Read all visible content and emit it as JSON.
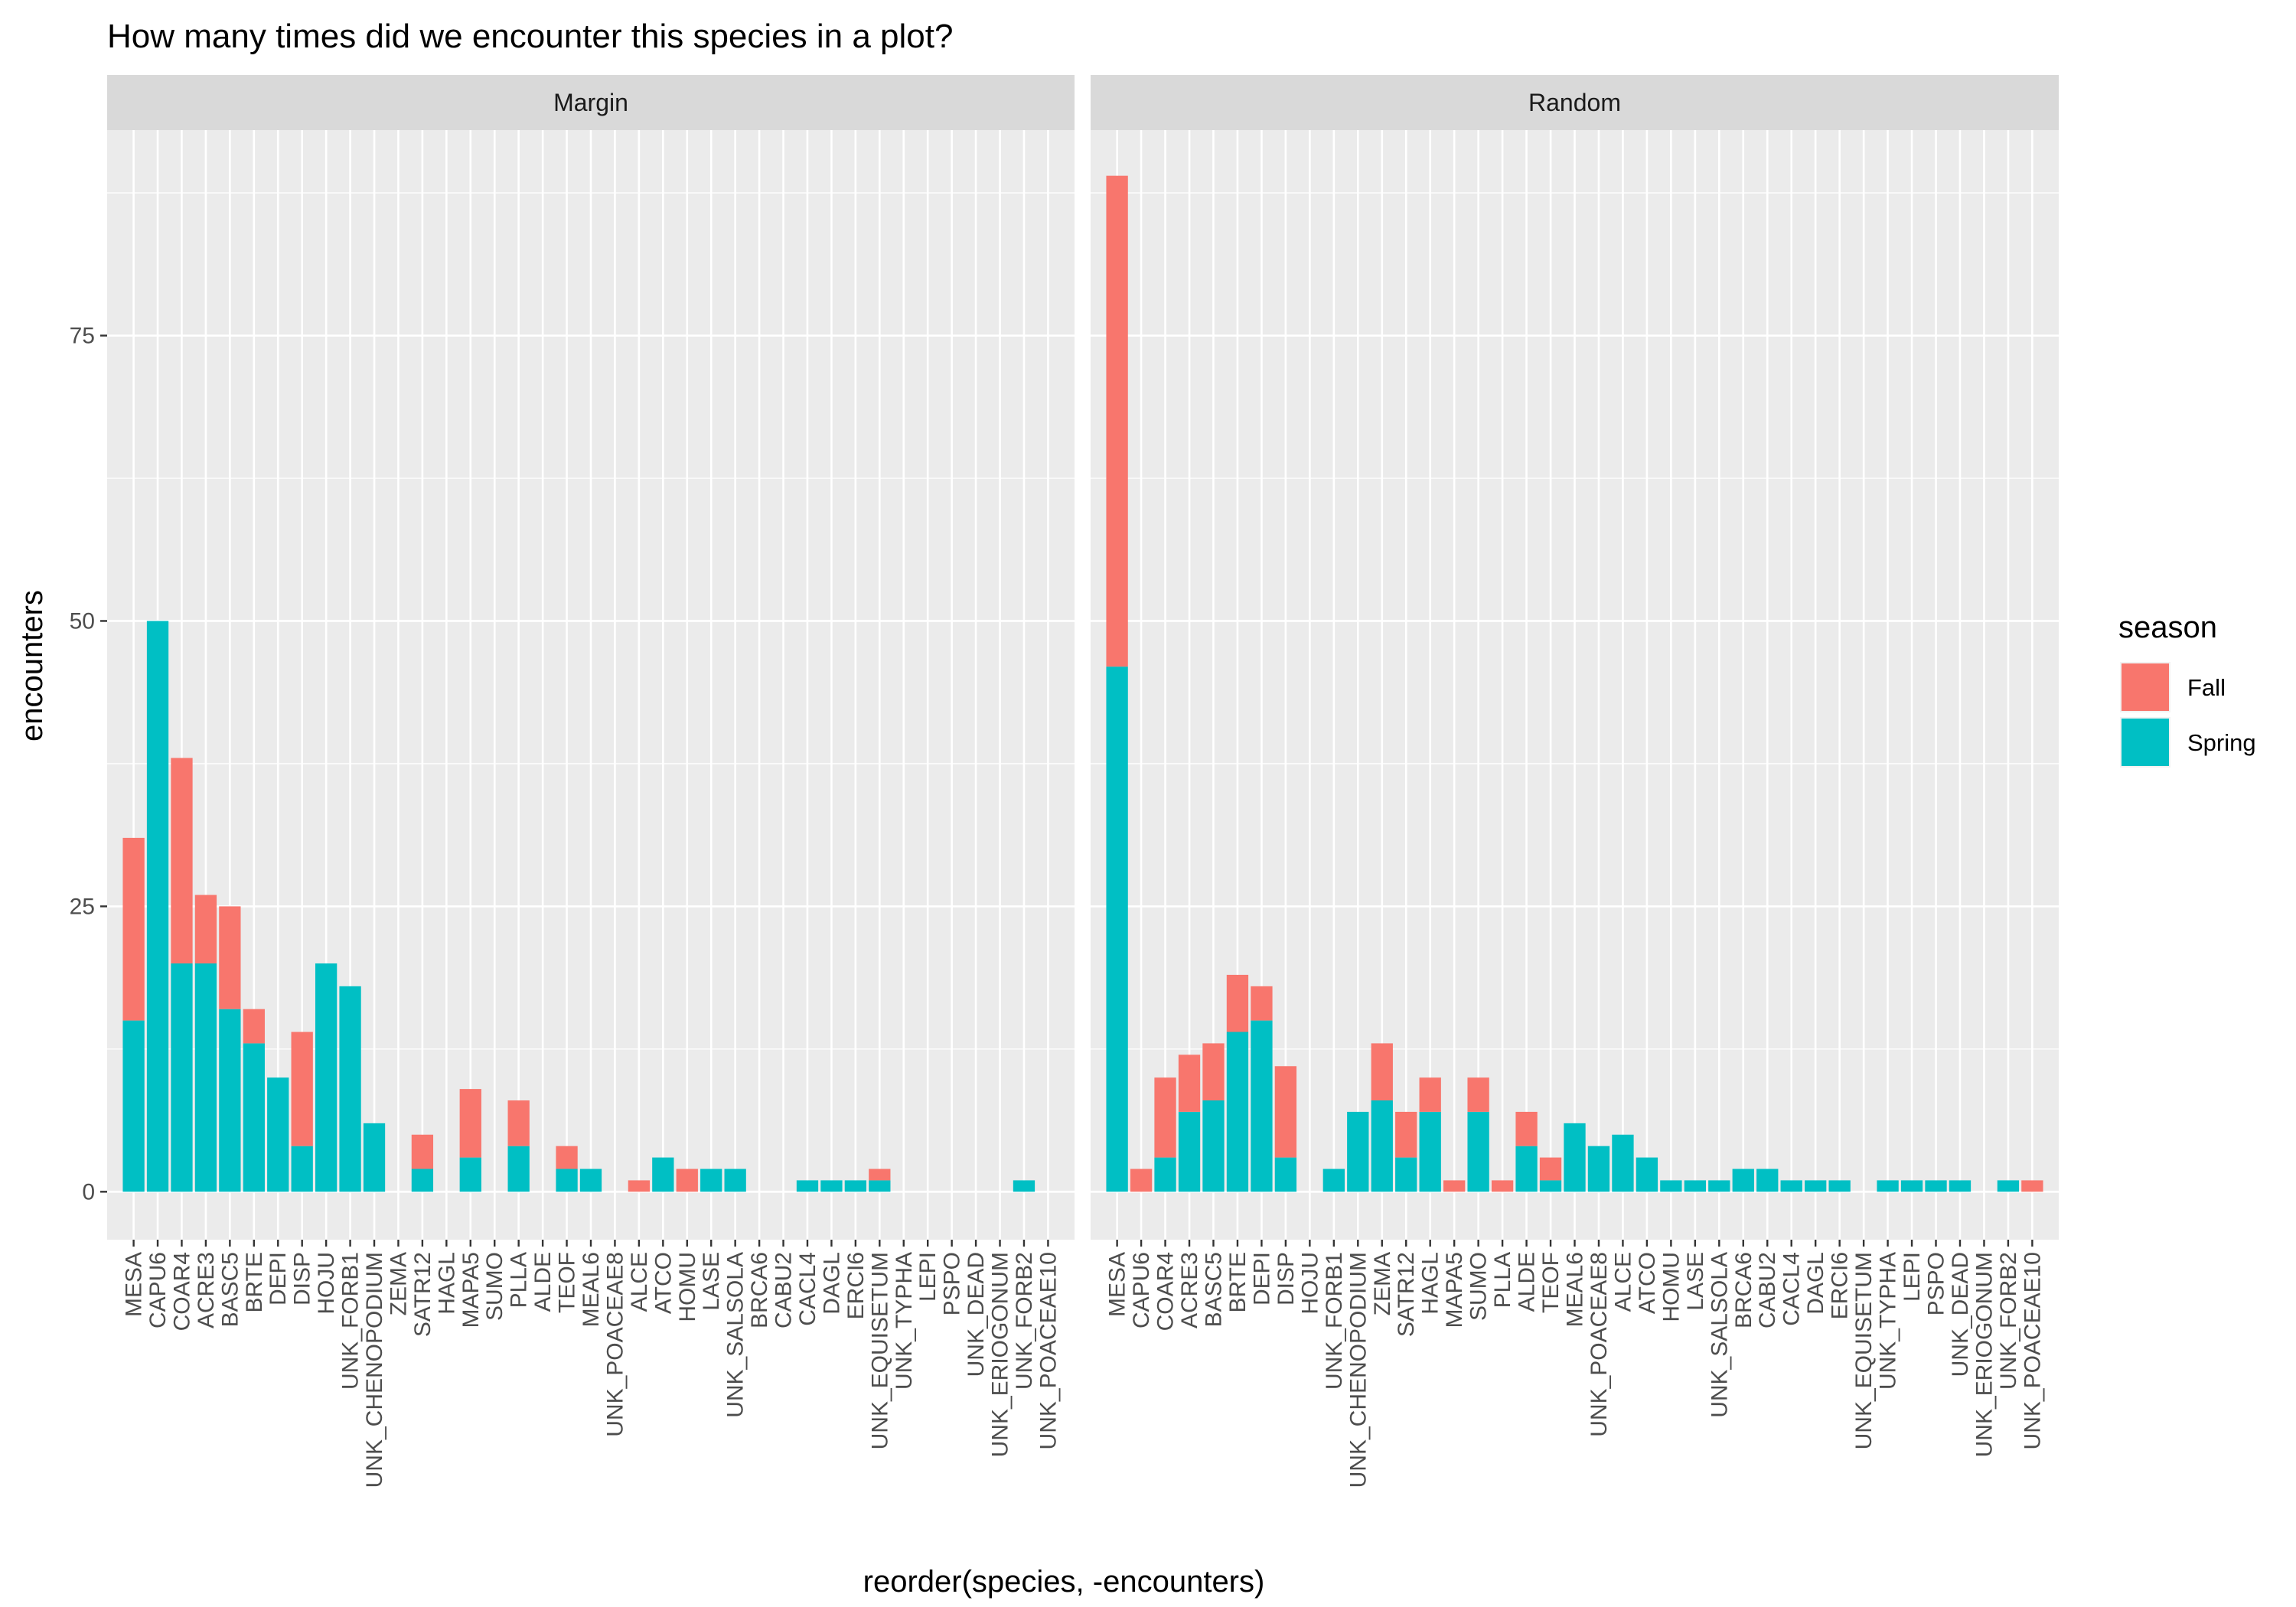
{
  "chart_data": {
    "type": "bar",
    "stacked": true,
    "title": "How many times did we encounter this species in a plot?",
    "xlabel": "reorder(species, -encounters)",
    "ylabel": "encounters",
    "ylim": [
      -4.2,
      93
    ],
    "yticks": [
      0,
      25,
      50,
      75
    ],
    "grid": true,
    "legend": {
      "title": "season",
      "position": "right",
      "entries": [
        {
          "name": "Fall",
          "color": "#F8766D"
        },
        {
          "name": "Spring",
          "color": "#00BFC4"
        }
      ]
    },
    "categories": [
      "MESA",
      "CAPU6",
      "COAR4",
      "ACRE3",
      "BASC5",
      "BRTE",
      "DEPI",
      "DISP",
      "HOJU",
      "UNK_FORB1",
      "UNK_CHENOPODIUM",
      "ZEMA",
      "SATR12",
      "HAGL",
      "MAPA5",
      "SUMO",
      "PLLA",
      "ALDE",
      "TEOF",
      "MEAL6",
      "UNK_POACEAE8",
      "ALCE",
      "ATCO",
      "HOMU",
      "LASE",
      "UNK_SALSOLA",
      "BRCA6",
      "CABU2",
      "CACL4",
      "DAGL",
      "ERCI6",
      "UNK_EQUISETUM",
      "UNK_TYPHA",
      "LEPI",
      "PSPO",
      "UNK_DEAD",
      "UNK_ERIOGONUM",
      "UNK_FORB2",
      "UNK_POACEAE10"
    ],
    "panels": [
      {
        "name": "Margin",
        "series": [
          {
            "name": "Spring",
            "values": [
              15,
              50,
              20,
              20,
              16,
              13,
              10,
              4,
              20,
              18,
              6,
              0,
              2,
              0,
              3,
              0,
              4,
              0,
              2,
              2,
              0,
              0,
              3,
              0,
              2,
              2,
              0,
              0,
              1,
              1,
              1,
              1,
              0,
              0,
              0,
              0,
              0,
              1,
              0
            ]
          },
          {
            "name": "Fall",
            "values": [
              16,
              0,
              18,
              6,
              9,
              3,
              0,
              10,
              0,
              0,
              0,
              0,
              3,
              0,
              6,
              0,
              4,
              0,
              2,
              0,
              0,
              1,
              0,
              2,
              0,
              0,
              0,
              0,
              0,
              0,
              0,
              1,
              0,
              0,
              0,
              0,
              0,
              0,
              0
            ]
          }
        ]
      },
      {
        "name": "Random",
        "series": [
          {
            "name": "Spring",
            "values": [
              46,
              0,
              3,
              7,
              8,
              14,
              15,
              3,
              0,
              2,
              7,
              8,
              3,
              7,
              0,
              7,
              0,
              4,
              1,
              6,
              4,
              5,
              3,
              1,
              1,
              1,
              2,
              2,
              1,
              1,
              1,
              0,
              1,
              1,
              1,
              1,
              0,
              1,
              0
            ]
          },
          {
            "name": "Fall",
            "values": [
              43,
              2,
              7,
              5,
              5,
              5,
              3,
              8,
              0,
              0,
              0,
              5,
              4,
              3,
              1,
              3,
              1,
              3,
              2,
              0,
              0,
              0,
              0,
              0,
              0,
              0,
              0,
              0,
              0,
              0,
              0,
              0,
              0,
              0,
              0,
              0,
              0,
              0,
              1
            ]
          }
        ]
      }
    ]
  }
}
